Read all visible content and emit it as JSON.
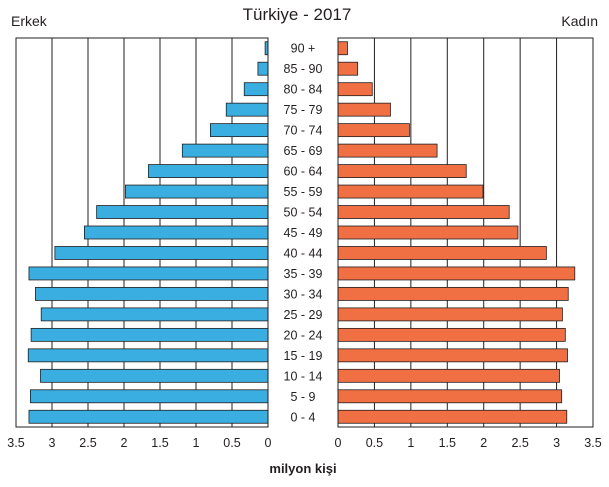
{
  "chart_data": {
    "type": "bar",
    "title": "Türkiye - 2017",
    "left_label": "Erkek",
    "right_label": "Kadın",
    "xlabel": "milyon kişi",
    "categories": [
      "90 +",
      "85 - 90",
      "80 - 84",
      "75 - 79",
      "70 - 74",
      "65 - 69",
      "60 - 64",
      "55 - 59",
      "50 - 54",
      "45 - 49",
      "40 - 44",
      "35 - 39",
      "30 - 34",
      "25 - 29",
      "20 - 24",
      "15 - 19",
      "10 - 14",
      "5 - 9",
      "0 - 4"
    ],
    "series": [
      {
        "name": "Erkek",
        "color": "#3aaee0",
        "values": [
          0.04,
          0.14,
          0.33,
          0.58,
          0.8,
          1.19,
          1.66,
          1.98,
          2.38,
          2.55,
          2.96,
          3.32,
          3.23,
          3.15,
          3.29,
          3.33,
          3.16,
          3.3,
          3.32
        ]
      },
      {
        "name": "Kadın",
        "color": "#f07043",
        "values": [
          0.13,
          0.27,
          0.47,
          0.72,
          0.98,
          1.36,
          1.76,
          1.99,
          2.35,
          2.47,
          2.86,
          3.25,
          3.16,
          3.08,
          3.12,
          3.15,
          3.04,
          3.07,
          3.14
        ]
      }
    ],
    "x_ticks": [
      "3.5",
      "3",
      "2.5",
      "2",
      "1.5",
      "1",
      "0.5",
      "0"
    ],
    "x_ticks_right": [
      "0",
      "0.5",
      "1",
      "1.5",
      "2",
      "2.5",
      "3",
      "3.5"
    ],
    "xlim": [
      0,
      3.5
    ],
    "grid": true
  }
}
